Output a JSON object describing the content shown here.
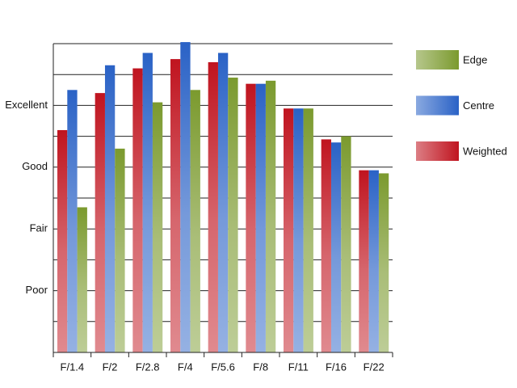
{
  "chart_data": {
    "type": "bar",
    "categories": [
      "F/1.4",
      "F/2",
      "F/2.8",
      "F/4",
      "F/5.6",
      "F/8",
      "F/11",
      "F/16",
      "F/22"
    ],
    "series": [
      {
        "name": "Weighted",
        "color": "#c0141f",
        "values": [
          7.2,
          8.4,
          9.2,
          9.5,
          9.4,
          8.7,
          7.9,
          6.9,
          5.9
        ]
      },
      {
        "name": "Centre",
        "color": "#2a62c6",
        "values": [
          8.5,
          9.3,
          9.7,
          10.05,
          9.7,
          8.7,
          7.9,
          6.8,
          5.9
        ]
      },
      {
        "name": "Edge",
        "color": "#7b9a2e",
        "values": [
          4.7,
          6.6,
          8.1,
          8.5,
          8.9,
          8.8,
          7.9,
          7.0,
          5.8
        ]
      }
    ],
    "ylim": [
      0,
      10
    ],
    "yticks": [
      {
        "value": 2,
        "label": "Poor"
      },
      {
        "value": 4,
        "label": "Fair"
      },
      {
        "value": 6,
        "label": "Good"
      },
      {
        "value": 8,
        "label": "Excellent"
      }
    ],
    "minor_yticks": [
      1,
      3,
      5,
      7,
      9,
      10
    ],
    "grid": true,
    "legend": "right"
  }
}
